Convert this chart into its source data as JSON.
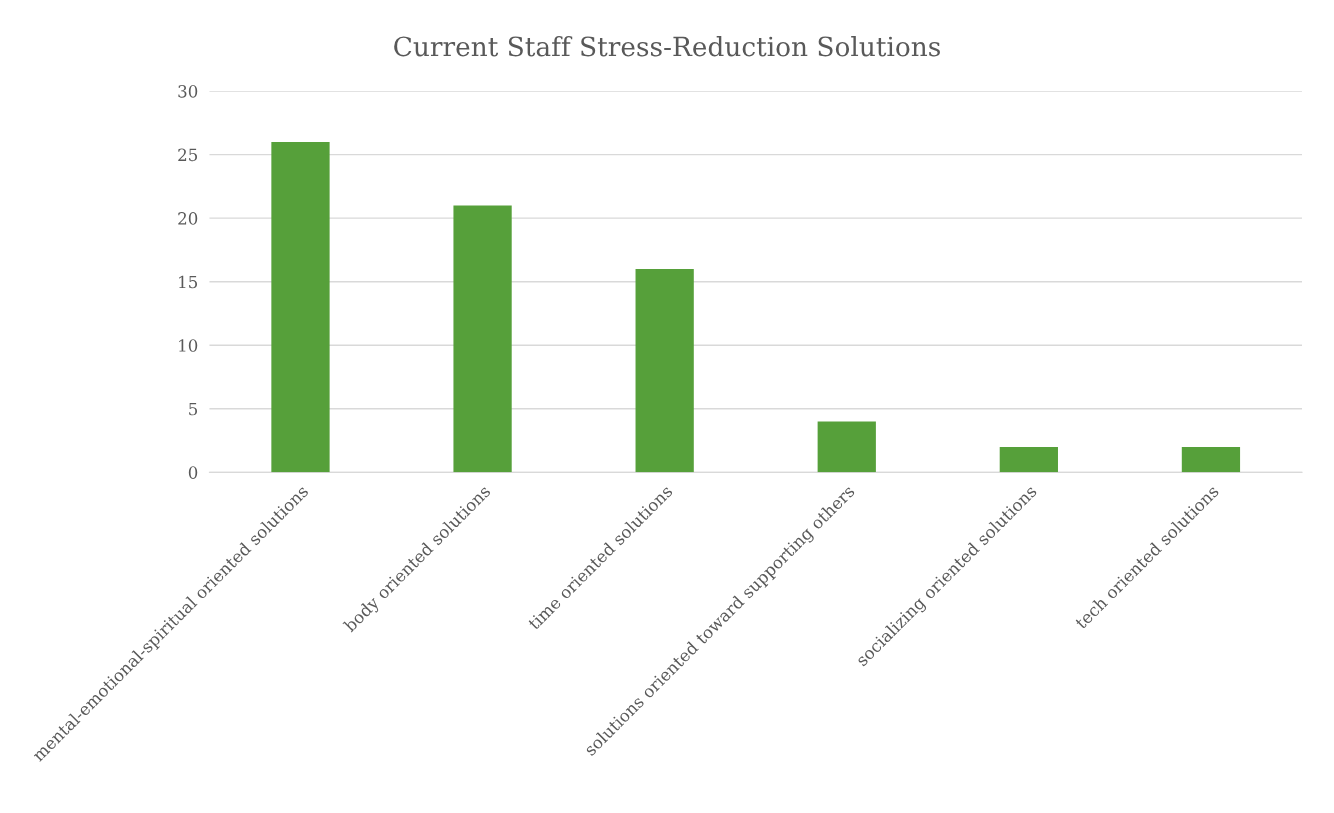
{
  "chart_data": {
    "type": "bar",
    "title": "Current Staff Stress-Reduction Solutions",
    "categories": [
      "mental-emotional-spiritual oriented solutions",
      "body oriented solutions",
      "time oriented solutions",
      "solutions oriented toward supporting others",
      "socializing oriented solutions",
      "tech oriented solutions"
    ],
    "values": [
      26,
      21,
      16,
      4,
      2,
      2
    ],
    "color": "#56a03a",
    "ylim": [
      0,
      30
    ],
    "yticks": [
      0,
      5,
      10,
      15,
      20,
      25,
      30
    ],
    "grid": "y"
  }
}
